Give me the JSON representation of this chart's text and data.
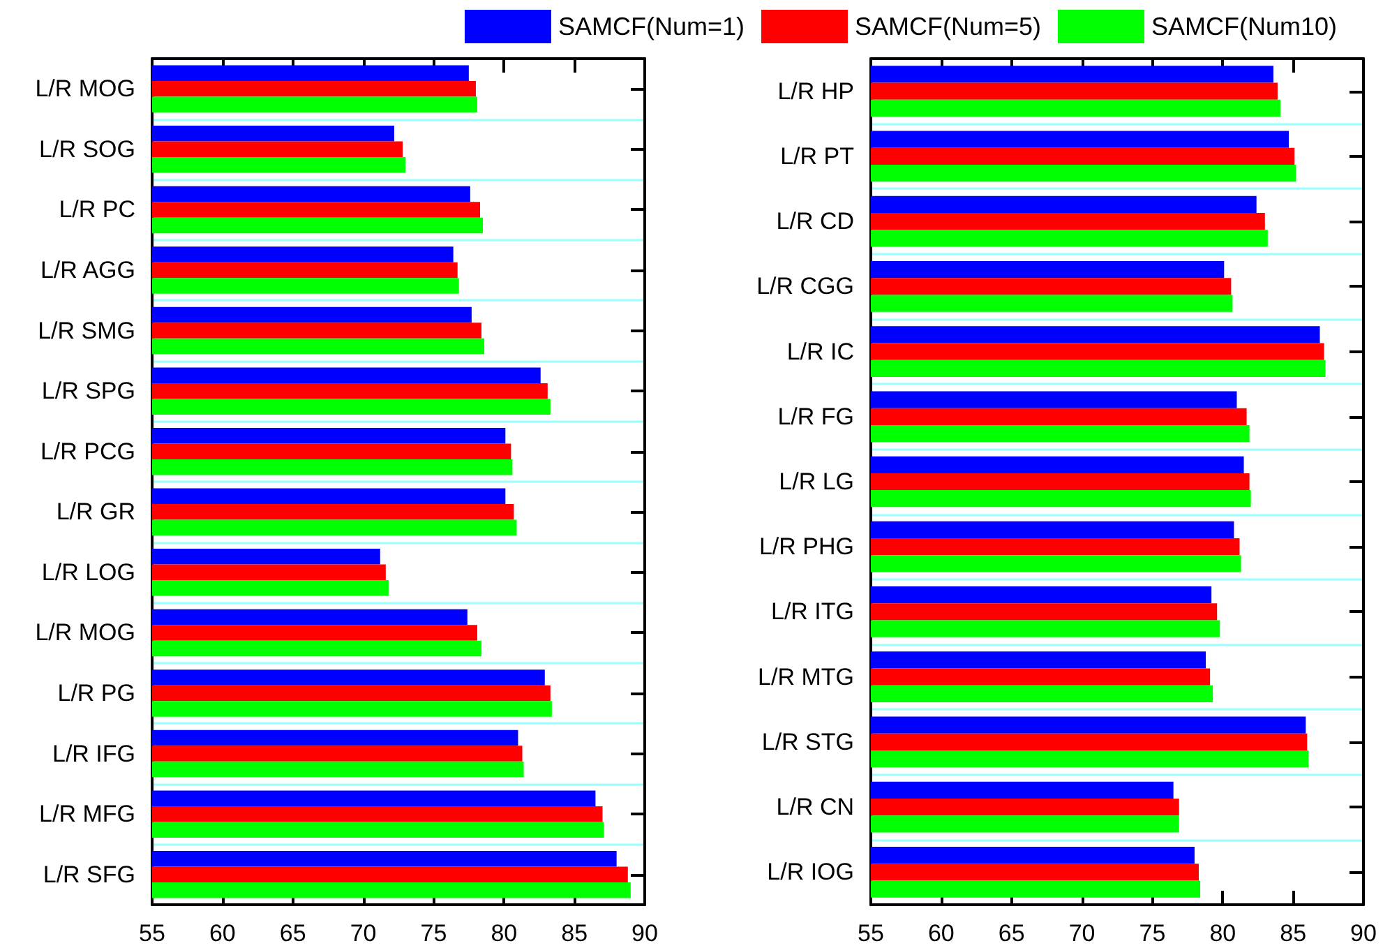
{
  "chart_data": [
    {
      "type": "bar",
      "orientation": "horizontal",
      "categories": [
        "L/R MOG",
        "L/R SOG",
        "L/R PC",
        "L/R AGG",
        "L/R SMG",
        "L/R SPG",
        "L/R PCG",
        "L/R GR",
        "L/R LOG",
        "L/R MOG",
        "L/R PG",
        "L/R IFG",
        "L/R MFG",
        "L/R SFG"
      ],
      "series": [
        {
          "color": "#0000ff",
          "values": [
            77.5,
            72.2,
            77.6,
            76.4,
            77.7,
            82.6,
            80.1,
            80.1,
            71.2,
            77.4,
            82.9,
            81.0,
            86.5,
            88.0
          ]
        },
        {
          "color": "#ff0000",
          "values": [
            78.0,
            72.8,
            78.3,
            76.7,
            78.4,
            83.1,
            80.5,
            80.7,
            71.6,
            78.1,
            83.3,
            81.3,
            87.0,
            88.8
          ]
        },
        {
          "color": "#00ff00",
          "values": [
            78.1,
            73.0,
            78.5,
            76.8,
            78.6,
            83.3,
            80.6,
            80.9,
            71.8,
            78.4,
            83.4,
            81.4,
            87.1,
            89.0
          ]
        }
      ],
      "xlim": [
        55,
        90
      ],
      "xticks": [
        55,
        60,
        65,
        70,
        75,
        80,
        85,
        90
      ],
      "grid": "y",
      "legend": false
    },
    {
      "type": "bar",
      "orientation": "horizontal",
      "categories": [
        "L/R HP",
        "L/R PT",
        "L/R CD",
        "L/R CGG",
        "L/R IC",
        "L/R FG",
        "L/R LG",
        "L/R PHG",
        "L/R ITG",
        "L/R MTG",
        "L/R STG",
        "L/R CN",
        "L/R IOG"
      ],
      "series": [
        {
          "name": "SAMCF(Num=1)",
          "color": "#0000ff",
          "values": [
            83.6,
            84.7,
            82.4,
            80.1,
            86.9,
            81.0,
            81.5,
            80.8,
            79.2,
            78.8,
            85.9,
            76.5,
            78.0
          ]
        },
        {
          "name": "SAMCF(Num=5)",
          "color": "#ff0000",
          "values": [
            83.9,
            85.1,
            83.0,
            80.6,
            87.2,
            81.7,
            81.9,
            81.2,
            79.6,
            79.1,
            86.0,
            76.9,
            78.3
          ]
        },
        {
          "name": "SAMCF(Num10)",
          "color": "#00ff00",
          "values": [
            84.1,
            85.2,
            83.2,
            80.7,
            87.3,
            81.9,
            82.0,
            81.3,
            79.8,
            79.3,
            86.1,
            76.9,
            78.4
          ]
        }
      ],
      "xlim": [
        55,
        90
      ],
      "xticks": [
        55,
        60,
        65,
        70,
        75,
        80,
        85,
        90
      ],
      "grid": "y",
      "legend": "top"
    }
  ]
}
